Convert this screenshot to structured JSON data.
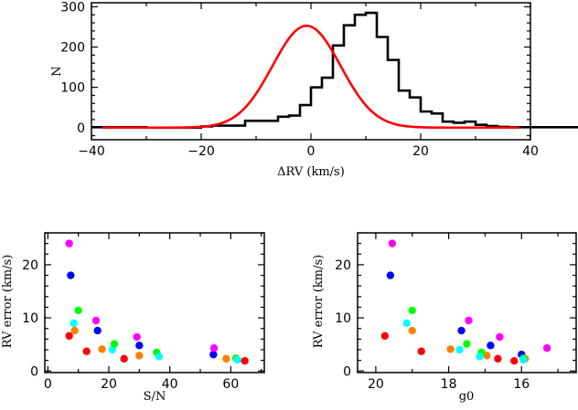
{
  "chart_data": [
    {
      "type": "bar",
      "subtype": "histogram_with_gaussian_fit",
      "title": "",
      "xlabel": "ΔRV (km/s)",
      "ylabel": "N",
      "xlim": [
        -40,
        40
      ],
      "ylim": [
        -30,
        310
      ],
      "xticks": [
        -40,
        -20,
        0,
        20,
        40
      ],
      "yticks": [
        0,
        100,
        200,
        300
      ],
      "grid": false,
      "bin_width": 2,
      "bin_edges_start": -40,
      "series": [
        {
          "name": "histogram",
          "color": "#000000",
          "values": [
            1,
            1,
            1,
            1,
            1,
            0,
            0,
            0,
            0,
            0,
            3,
            5,
            5,
            5,
            17,
            17,
            17,
            27,
            30,
            56,
            100,
            124,
            204,
            254,
            280,
            285,
            225,
            168,
            92,
            75,
            40,
            35,
            15,
            12,
            15,
            7,
            4,
            2,
            1,
            1,
            1,
            1,
            1,
            1,
            1,
            3,
            3,
            0,
            0,
            1
          ]
        },
        {
          "name": "gaussian fit",
          "color": "#ff0000",
          "type": "line",
          "amplitude": 253,
          "mean": -0.8,
          "sigma": 6.2
        }
      ]
    },
    {
      "type": "scatter",
      "title": "",
      "xlabel": "S/N",
      "ylabel": "RV error (km/s)",
      "xlim": [
        -1,
        71
      ],
      "ylim": [
        -0.3,
        26
      ],
      "xticks": [
        0,
        20,
        40,
        60
      ],
      "yticks": [
        0,
        10,
        20
      ],
      "grid": false,
      "points": [
        {
          "x": 7.0,
          "y": 24.0,
          "color": "#ff00ff"
        },
        {
          "x": 7.5,
          "y": 18.0,
          "color": "#0000ff"
        },
        {
          "x": 10.0,
          "y": 11.4,
          "color": "#00ff00"
        },
        {
          "x": 8.5,
          "y": 9.0,
          "color": "#00ffff"
        },
        {
          "x": 8.8,
          "y": 7.6,
          "color": "#ff8000"
        },
        {
          "x": 7.0,
          "y": 6.6,
          "color": "#ff0000"
        },
        {
          "x": 12.7,
          "y": 3.7,
          "color": "#ff0000"
        },
        {
          "x": 15.8,
          "y": 9.5,
          "color": "#ff00ff"
        },
        {
          "x": 16.3,
          "y": 7.6,
          "color": "#0000ff"
        },
        {
          "x": 17.8,
          "y": 4.1,
          "color": "#ff8000"
        },
        {
          "x": 21.2,
          "y": 4.0,
          "color": "#00ffff"
        },
        {
          "x": 21.8,
          "y": 5.1,
          "color": "#00ff00"
        },
        {
          "x": 25.0,
          "y": 2.3,
          "color": "#ff0000"
        },
        {
          "x": 29.2,
          "y": 6.4,
          "color": "#ff00ff"
        },
        {
          "x": 30.0,
          "y": 4.8,
          "color": "#0000ff"
        },
        {
          "x": 30.0,
          "y": 2.9,
          "color": "#ff8000"
        },
        {
          "x": 35.7,
          "y": 3.5,
          "color": "#00ff00"
        },
        {
          "x": 36.5,
          "y": 2.7,
          "color": "#00ffff"
        },
        {
          "x": 54.3,
          "y": 3.1,
          "color": "#0000ff"
        },
        {
          "x": 54.5,
          "y": 4.3,
          "color": "#ff00ff"
        },
        {
          "x": 58.5,
          "y": 2.3,
          "color": "#ff8000"
        },
        {
          "x": 61.7,
          "y": 2.4,
          "color": "#00ff00"
        },
        {
          "x": 62.2,
          "y": 2.1,
          "color": "#00ffff"
        },
        {
          "x": 64.6,
          "y": 1.9,
          "color": "#ff0000"
        }
      ]
    },
    {
      "type": "scatter",
      "title": "",
      "xlabel": "g0",
      "ylabel": "RV error (km/s)",
      "xlim": [
        20.5,
        14.5
      ],
      "ylim": [
        -0.3,
        26
      ],
      "xticks": [
        20,
        18,
        16
      ],
      "yticks": [
        0,
        10,
        20
      ],
      "grid": false,
      "points": [
        {
          "x": 19.55,
          "y": 24.0,
          "color": "#ff00ff"
        },
        {
          "x": 19.6,
          "y": 18.0,
          "color": "#0000ff"
        },
        {
          "x": 19.0,
          "y": 11.4,
          "color": "#00ff00"
        },
        {
          "x": 19.15,
          "y": 9.0,
          "color": "#00ffff"
        },
        {
          "x": 19.0,
          "y": 7.6,
          "color": "#ff8000"
        },
        {
          "x": 19.75,
          "y": 6.6,
          "color": "#ff0000"
        },
        {
          "x": 18.75,
          "y": 3.7,
          "color": "#ff0000"
        },
        {
          "x": 17.45,
          "y": 9.5,
          "color": "#ff00ff"
        },
        {
          "x": 17.65,
          "y": 7.6,
          "color": "#0000ff"
        },
        {
          "x": 17.95,
          "y": 4.1,
          "color": "#ff8000"
        },
        {
          "x": 17.7,
          "y": 4.0,
          "color": "#00ffff"
        },
        {
          "x": 17.5,
          "y": 5.1,
          "color": "#00ff00"
        },
        {
          "x": 16.65,
          "y": 2.3,
          "color": "#ff0000"
        },
        {
          "x": 16.6,
          "y": 6.4,
          "color": "#ff00ff"
        },
        {
          "x": 16.85,
          "y": 4.8,
          "color": "#0000ff"
        },
        {
          "x": 16.95,
          "y": 2.9,
          "color": "#ff8000"
        },
        {
          "x": 17.1,
          "y": 3.5,
          "color": "#00ff00"
        },
        {
          "x": 17.15,
          "y": 2.7,
          "color": "#00ffff"
        },
        {
          "x": 16.0,
          "y": 3.1,
          "color": "#0000ff"
        },
        {
          "x": 15.3,
          "y": 4.3,
          "color": "#ff00ff"
        },
        {
          "x": 15.9,
          "y": 2.3,
          "color": "#ff8000"
        },
        {
          "x": 15.95,
          "y": 2.4,
          "color": "#00ff00"
        },
        {
          "x": 15.95,
          "y": 2.1,
          "color": "#00ffff"
        },
        {
          "x": 16.2,
          "y": 1.9,
          "color": "#ff0000"
        }
      ]
    }
  ],
  "labels": {
    "top_xlabel": "ΔRV (km/s)",
    "top_ylabel": "N",
    "left_xlabel": "S/N",
    "left_ylabel": "RV error (km/s)",
    "right_xlabel": "g0",
    "right_ylabel": "RV error (km/s)"
  }
}
